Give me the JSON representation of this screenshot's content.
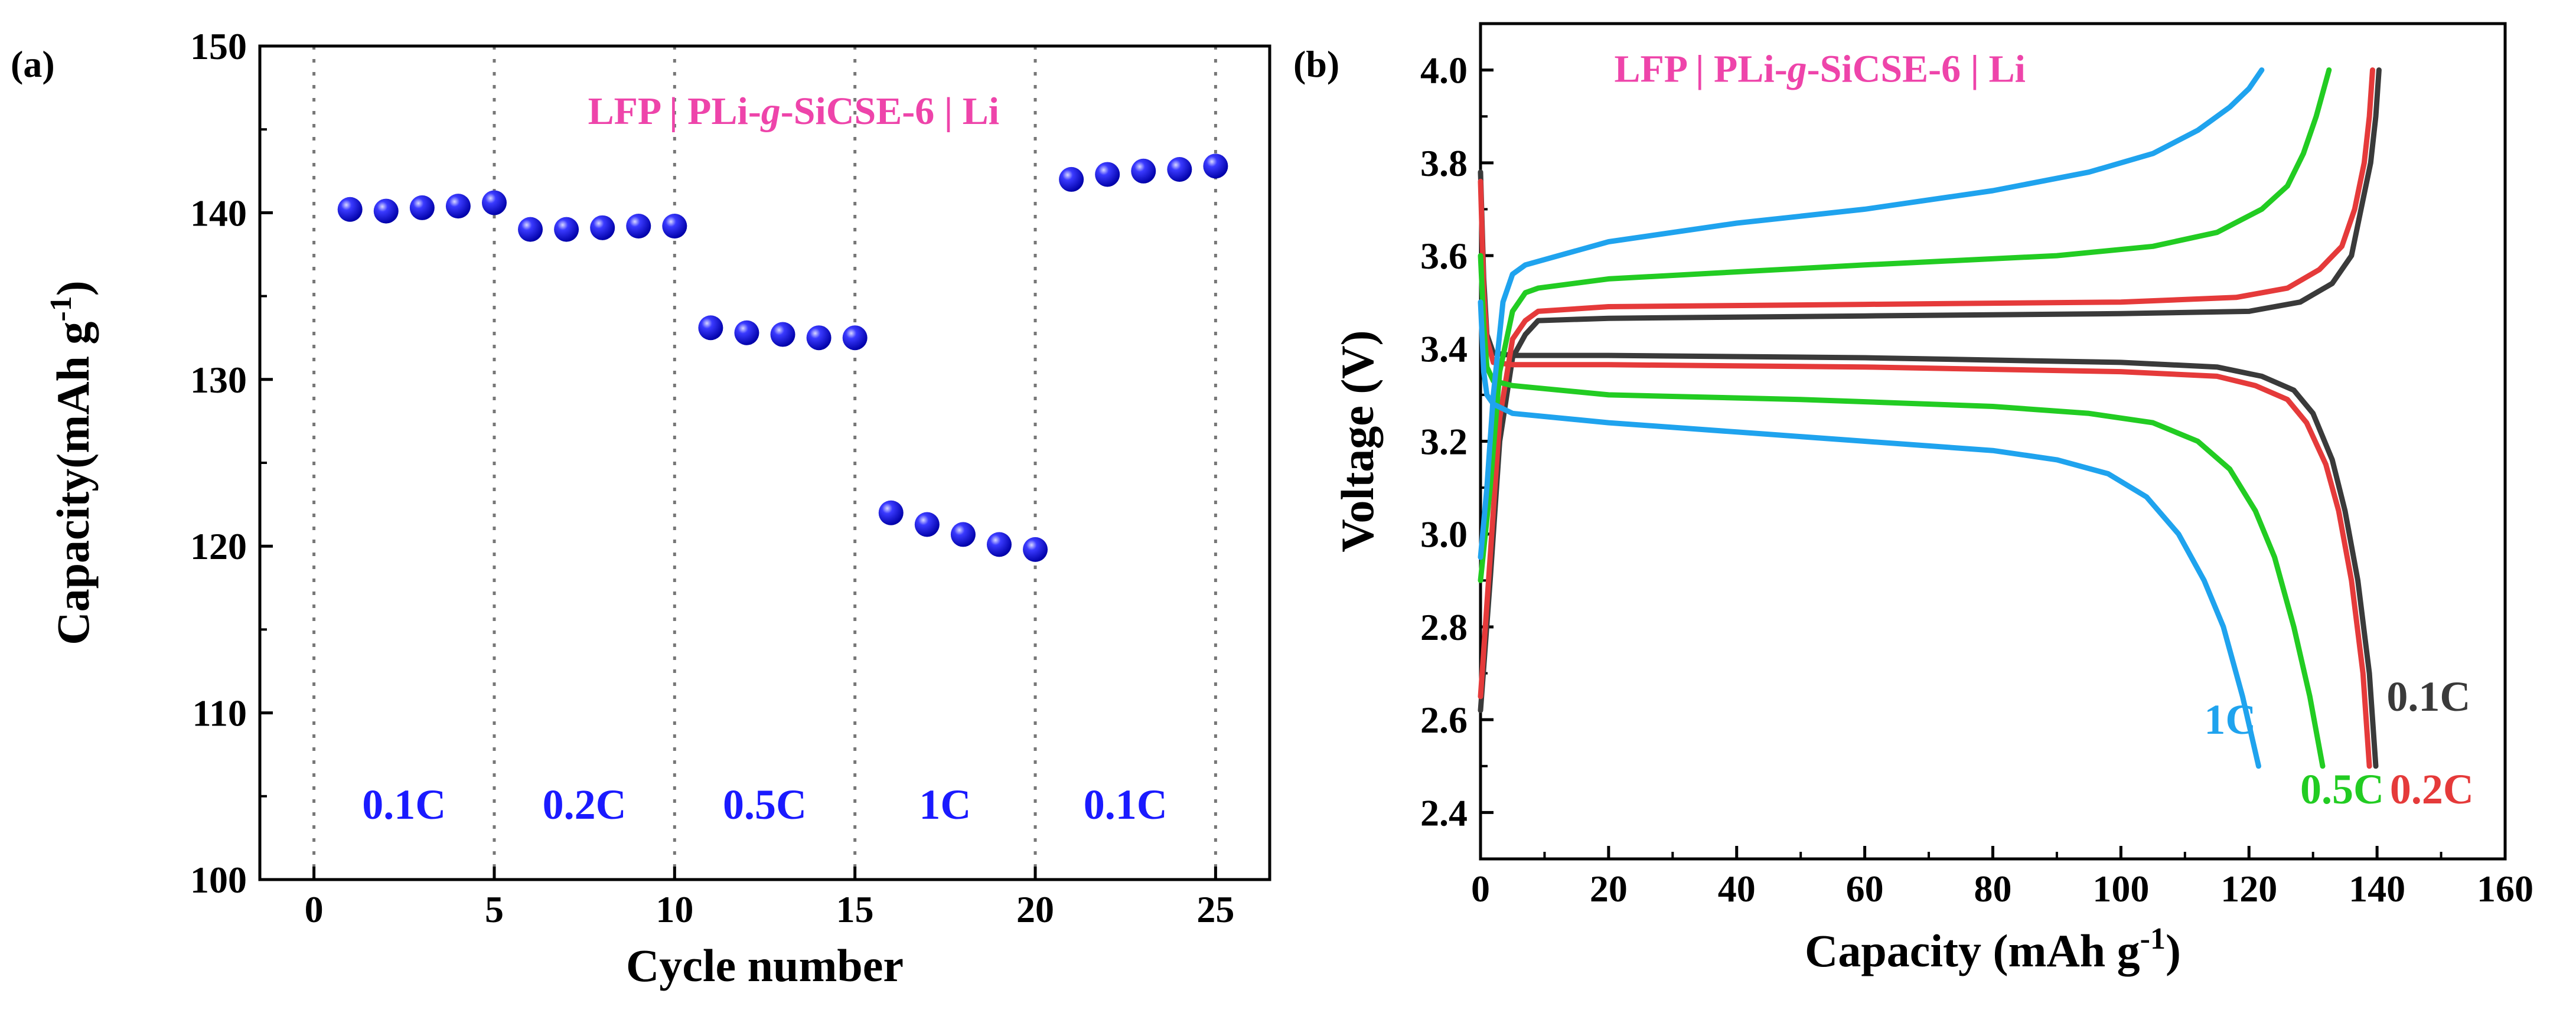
{
  "chart_data": [
    {
      "panel": "(a)",
      "type": "scatter",
      "title": "LFP | PLi-g-SiCSE-6 | Li",
      "title_parts": [
        "LFP | PLi-",
        "g",
        "-SiCSE-6 | Li"
      ],
      "xlabel": "Cycle number",
      "ylabel_parts": [
        "Capacity(mAh g",
        "-1",
        ")"
      ],
      "xlim": [
        -1.5,
        26.5
      ],
      "ylim": [
        100,
        150
      ],
      "xticks": [
        0,
        5,
        10,
        15,
        20,
        25
      ],
      "yticks": [
        100,
        110,
        120,
        130,
        140,
        150
      ],
      "x_tick_labels": [
        "0",
        "5",
        "10",
        "15",
        "20",
        "25"
      ],
      "y_tick_labels": [
        "100",
        "110",
        "120",
        "130",
        "140",
        "150"
      ],
      "vlines": [
        0,
        5,
        10,
        15,
        20,
        25
      ],
      "grid": false,
      "marker_color": "#1a1aff",
      "x": [
        1,
        2,
        3,
        4,
        5,
        6,
        7,
        8,
        9,
        10,
        11,
        12,
        13,
        14,
        15,
        16,
        17,
        18,
        19,
        20,
        21,
        22,
        23,
        24,
        25
      ],
      "values": [
        140.2,
        140.1,
        140.3,
        140.4,
        140.6,
        139.0,
        139.0,
        139.1,
        139.2,
        139.2,
        133.1,
        132.8,
        132.7,
        132.5,
        132.5,
        122.0,
        121.3,
        120.7,
        120.1,
        119.8,
        142.0,
        142.3,
        142.5,
        142.6,
        142.8
      ],
      "rate_labels": [
        {
          "text": "0.1C",
          "x": 2.5,
          "y": 104.5
        },
        {
          "text": "0.2C",
          "x": 7.5,
          "y": 104.5
        },
        {
          "text": "0.5C",
          "x": 12.5,
          "y": 104.5
        },
        {
          "text": "1C",
          "x": 17.5,
          "y": 104.5
        },
        {
          "text": "0.1C",
          "x": 22.5,
          "y": 104.5
        }
      ]
    },
    {
      "panel": "(b)",
      "type": "line",
      "title": "LFP | PLi-g-SiCSE-6 | Li",
      "title_parts": [
        "LFP | PLi-",
        "g",
        "-SiCSE-6 | Li"
      ],
      "xlabel_parts": [
        "Capacity (mAh g",
        "-1",
        ")"
      ],
      "ylabel": "Voltage (V)",
      "xlim": [
        0,
        160
      ],
      "ylim": [
        2.3,
        4.1
      ],
      "xticks": [
        0,
        20,
        40,
        60,
        80,
        100,
        120,
        140,
        160
      ],
      "yticks": [
        2.4,
        2.6,
        2.8,
        3.0,
        3.2,
        3.4,
        3.6,
        3.8,
        4.0
      ],
      "x_tick_labels": [
        "0",
        "20",
        "40",
        "60",
        "80",
        "100",
        "120",
        "140",
        "160"
      ],
      "y_tick_labels": [
        "2.4",
        "2.6",
        "2.8",
        "3.0",
        "3.2",
        "3.4",
        "3.6",
        "3.8",
        "4.0"
      ],
      "grid": false,
      "series": [
        {
          "name": "0.1C",
          "color": "#3a3a3a",
          "label": {
            "text": "0.1C",
            "x": 141.5,
            "y": 2.65
          },
          "charge": [
            [
              0,
              2.62
            ],
            [
              1.5,
              2.9
            ],
            [
              3,
              3.2
            ],
            [
              5,
              3.38
            ],
            [
              7,
              3.43
            ],
            [
              9,
              3.46
            ],
            [
              20,
              3.465
            ],
            [
              60,
              3.47
            ],
            [
              100,
              3.475
            ],
            [
              120,
              3.48
            ],
            [
              128,
              3.5
            ],
            [
              133,
              3.54
            ],
            [
              136,
              3.6
            ],
            [
              137.5,
              3.7
            ],
            [
              139,
              3.8
            ],
            [
              139.8,
              3.9
            ],
            [
              140.3,
              4.0
            ]
          ],
          "discharge": [
            [
              0,
              3.78
            ],
            [
              0.5,
              3.55
            ],
            [
              1,
              3.43
            ],
            [
              2,
              3.39
            ],
            [
              5,
              3.385
            ],
            [
              20,
              3.385
            ],
            [
              60,
              3.38
            ],
            [
              100,
              3.37
            ],
            [
              115,
              3.36
            ],
            [
              122,
              3.34
            ],
            [
              127,
              3.31
            ],
            [
              130,
              3.26
            ],
            [
              133,
              3.16
            ],
            [
              135,
              3.05
            ],
            [
              137,
              2.9
            ],
            [
              138.8,
              2.7
            ],
            [
              139.8,
              2.5
            ]
          ]
        },
        {
          "name": "0.2C",
          "color": "#e53a3a",
          "label": {
            "text": "0.2C",
            "x": 142,
            "y": 2.45
          },
          "charge": [
            [
              0,
              2.65
            ],
            [
              1.5,
              2.95
            ],
            [
              3,
              3.25
            ],
            [
              5,
              3.42
            ],
            [
              7,
              3.46
            ],
            [
              9,
              3.48
            ],
            [
              20,
              3.49
            ],
            [
              60,
              3.495
            ],
            [
              100,
              3.5
            ],
            [
              118,
              3.51
            ],
            [
              126,
              3.53
            ],
            [
              131,
              3.57
            ],
            [
              134.5,
              3.62
            ],
            [
              136.5,
              3.7
            ],
            [
              138,
              3.8
            ],
            [
              138.8,
              3.9
            ],
            [
              139.3,
              4.0
            ]
          ],
          "discharge": [
            [
              0,
              3.76
            ],
            [
              0.5,
              3.52
            ],
            [
              1,
              3.42
            ],
            [
              2,
              3.37
            ],
            [
              5,
              3.365
            ],
            [
              20,
              3.365
            ],
            [
              60,
              3.36
            ],
            [
              100,
              3.35
            ],
            [
              115,
              3.34
            ],
            [
              121,
              3.32
            ],
            [
              126,
              3.29
            ],
            [
              129,
              3.24
            ],
            [
              132,
              3.15
            ],
            [
              134,
              3.05
            ],
            [
              136,
              2.9
            ],
            [
              137.8,
              2.7
            ],
            [
              138.8,
              2.5
            ]
          ]
        },
        {
          "name": "0.5C",
          "color": "#22cc22",
          "label": {
            "text": "0.5C",
            "x": 128,
            "y": 2.45
          },
          "charge": [
            [
              0,
              2.9
            ],
            [
              1.5,
              3.1
            ],
            [
              3,
              3.35
            ],
            [
              5,
              3.48
            ],
            [
              7,
              3.52
            ],
            [
              9,
              3.53
            ],
            [
              20,
              3.55
            ],
            [
              60,
              3.58
            ],
            [
              90,
              3.6
            ],
            [
              105,
              3.62
            ],
            [
              115,
              3.65
            ],
            [
              122,
              3.7
            ],
            [
              126,
              3.75
            ],
            [
              128.5,
              3.82
            ],
            [
              130.5,
              3.9
            ],
            [
              132.5,
              4.0
            ]
          ],
          "discharge": [
            [
              0,
              3.6
            ],
            [
              0.5,
              3.45
            ],
            [
              1,
              3.36
            ],
            [
              2,
              3.33
            ],
            [
              5,
              3.32
            ],
            [
              20,
              3.3
            ],
            [
              50,
              3.29
            ],
            [
              80,
              3.275
            ],
            [
              95,
              3.26
            ],
            [
              105,
              3.24
            ],
            [
              112,
              3.2
            ],
            [
              117,
              3.14
            ],
            [
              121,
              3.05
            ],
            [
              124,
              2.95
            ],
            [
              127,
              2.8
            ],
            [
              129.5,
              2.65
            ],
            [
              131.5,
              2.5
            ]
          ]
        },
        {
          "name": "1C",
          "color": "#1fa3ee",
          "label": {
            "text": "1C",
            "x": 113,
            "y": 2.6
          },
          "charge": [
            [
              0,
              2.95
            ],
            [
              1,
              3.1
            ],
            [
              2,
              3.3
            ],
            [
              3.5,
              3.5
            ],
            [
              5,
              3.56
            ],
            [
              7,
              3.58
            ],
            [
              20,
              3.63
            ],
            [
              40,
              3.67
            ],
            [
              60,
              3.7
            ],
            [
              80,
              3.74
            ],
            [
              95,
              3.78
            ],
            [
              105,
              3.82
            ],
            [
              112,
              3.87
            ],
            [
              117,
              3.92
            ],
            [
              120,
              3.96
            ],
            [
              122,
              4.0
            ]
          ],
          "discharge": [
            [
              0,
              3.5
            ],
            [
              0.5,
              3.35
            ],
            [
              1,
              3.3
            ],
            [
              2,
              3.28
            ],
            [
              5,
              3.26
            ],
            [
              20,
              3.24
            ],
            [
              40,
              3.22
            ],
            [
              60,
              3.2
            ],
            [
              80,
              3.18
            ],
            [
              90,
              3.16
            ],
            [
              98,
              3.13
            ],
            [
              104,
              3.08
            ],
            [
              109,
              3.0
            ],
            [
              113,
              2.9
            ],
            [
              116,
              2.8
            ],
            [
              119,
              2.65
            ],
            [
              121.5,
              2.5
            ]
          ]
        }
      ]
    }
  ]
}
